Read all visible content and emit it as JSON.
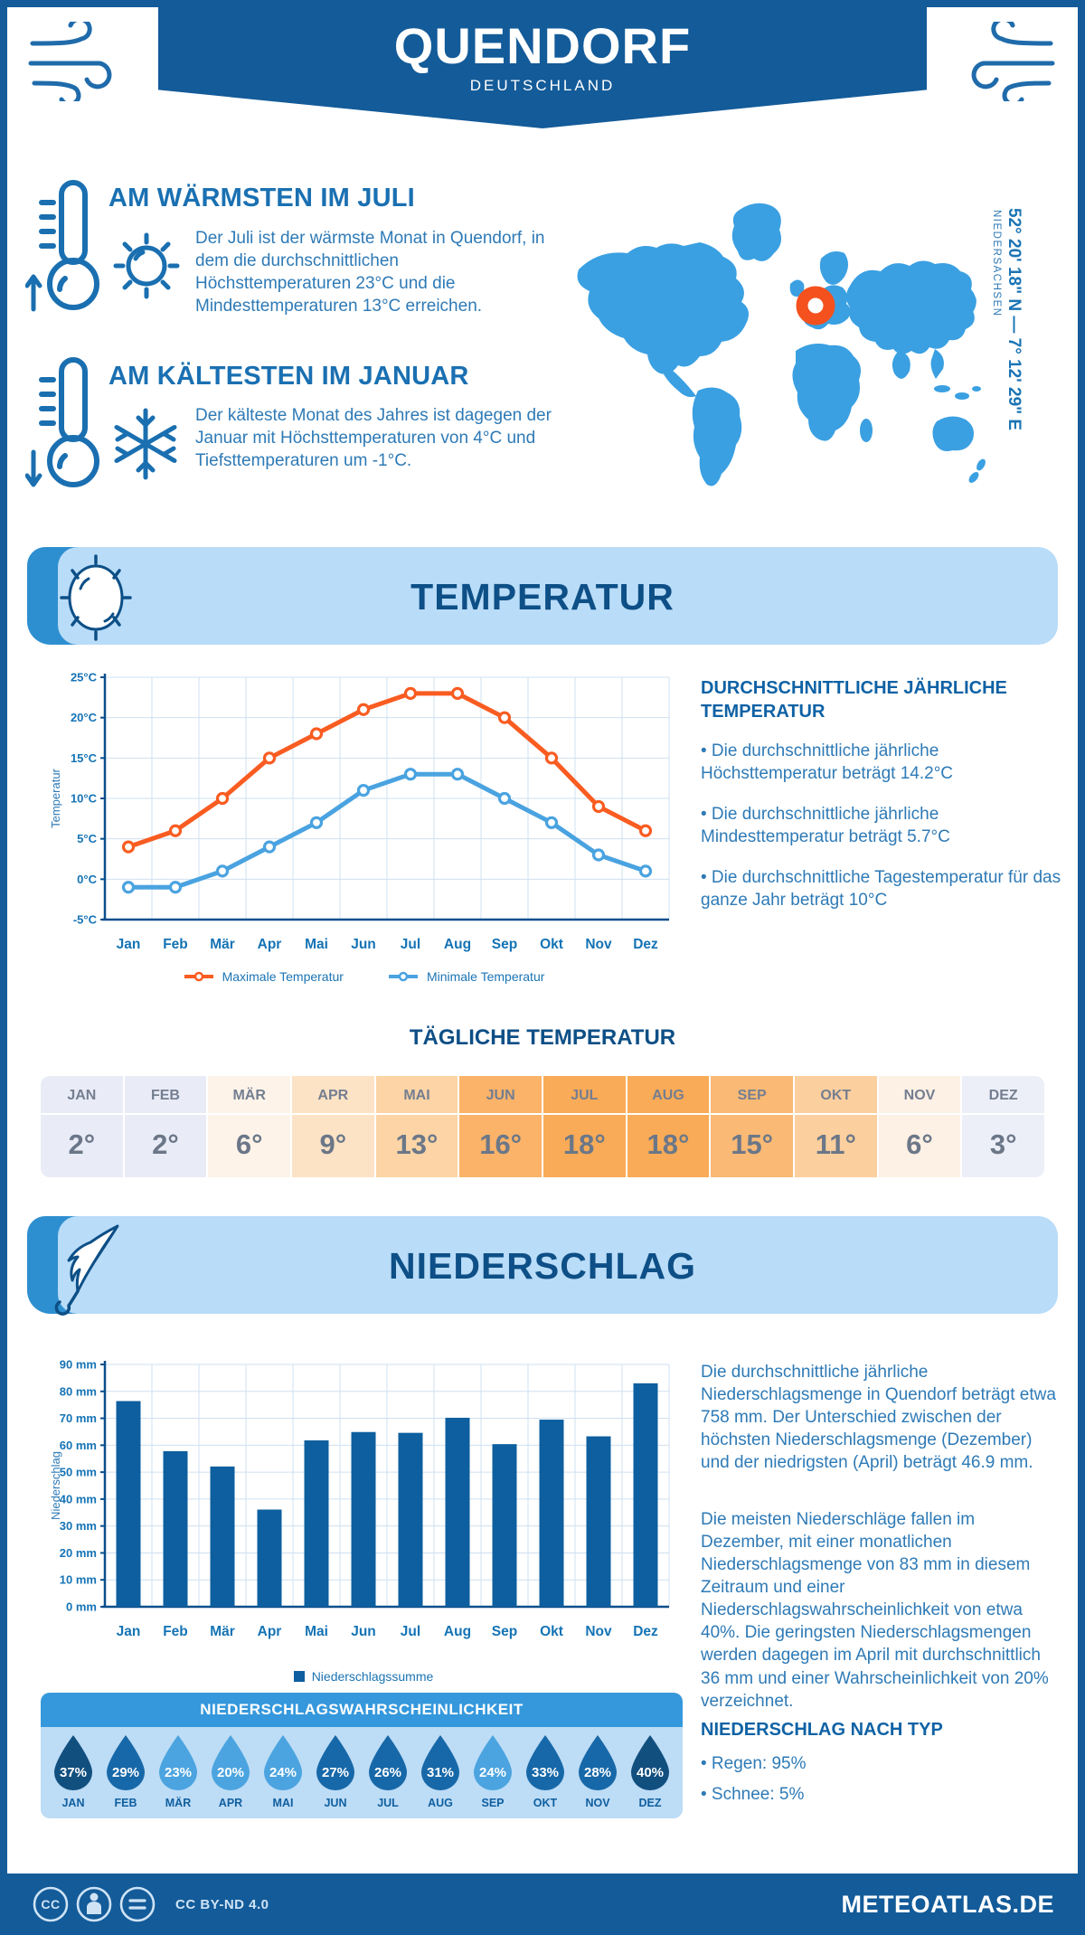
{
  "header": {
    "title": "QUENDORF",
    "subtitle": "DEUTSCHLAND"
  },
  "warmest": {
    "title": "AM WÄRMSTEN IM JULI",
    "text": "Der Juli ist der wärmste Monat in Quendorf, in dem die durchschnittlichen Höchsttemperaturen 23°C und die Mindesttemperaturen 13°C erreichen."
  },
  "coldest": {
    "title": "AM KÄLTESTEN IM JANUAR",
    "text": "Der kälteste Monat des Jahres ist dagegen der Januar mit Höchsttemperaturen von 4°C und Tiefsttemperaturen um -1°C."
  },
  "map": {
    "coordinates": "52° 20' 18\" N — 7° 12' 29\" E",
    "region": "NIEDERSACHSEN",
    "marker_color": "#f4511e",
    "land_color": "#3aa0e2"
  },
  "temperature_section": {
    "banner": "TEMPERATUR",
    "annual_title": "DURCHSCHNITTLICHE JÄHRLICHE TEMPERATUR",
    "bullets": [
      "• Die durchschnittliche jährliche Höchsttemperatur beträgt 14.2°C",
      "• Die durchschnittliche jährliche Mindesttemperatur beträgt 5.7°C",
      "• Die durchschnittliche Tagestemperatur für das ganze Jahr beträgt 10°C"
    ],
    "daily_title": "TÄGLICHE TEMPERATUR",
    "monthly": [
      {
        "month": "JAN",
        "value": "2°",
        "bg": "#e9ecf7"
      },
      {
        "month": "FEB",
        "value": "2°",
        "bg": "#e9ecf7"
      },
      {
        "month": "MÄR",
        "value": "6°",
        "bg": "#fdf3e9"
      },
      {
        "month": "APR",
        "value": "9°",
        "bg": "#fde3c5"
      },
      {
        "month": "MAI",
        "value": "13°",
        "bg": "#fcd4a5"
      },
      {
        "month": "JUN",
        "value": "16°",
        "bg": "#fab369"
      },
      {
        "month": "JUL",
        "value": "18°",
        "bg": "#f9ab57"
      },
      {
        "month": "AUG",
        "value": "18°",
        "bg": "#f9ab57"
      },
      {
        "month": "SEP",
        "value": "15°",
        "bg": "#fab975"
      },
      {
        "month": "OKT",
        "value": "11°",
        "bg": "#fccf9e"
      },
      {
        "month": "NOV",
        "value": "6°",
        "bg": "#fdf0e4"
      },
      {
        "month": "DEZ",
        "value": "3°",
        "bg": "#eceff8"
      }
    ]
  },
  "precipitation_section": {
    "banner": "NIEDERSCHLAG",
    "paragraph1": "Die durchschnittliche jährliche Niederschlagsmenge in Quendorf beträgt etwa 758 mm. Der Unterschied zwischen der höchsten Niederschlagsmenge (Dezember) und der niedrigsten (April) beträgt 46.9 mm.",
    "paragraph2": "Die meisten Niederschläge fallen im Dezember, mit einer monatlichen Niederschlagsmenge von 83 mm in diesem Zeitraum und einer Niederschlagswahrscheinlichkeit von etwa 40%. Die geringsten Niederschlagsmengen werden dagegen im April mit durchschnittlich 36 mm und einer Wahrscheinlichkeit von 20% verzeichnet.",
    "type_title": "NIEDERSCHLAG NACH TYP",
    "type_bullets": [
      "• Regen: 95%",
      "• Schnee: 5%"
    ],
    "probability": {
      "title": "NIEDERSCHLAGSWAHRSCHEINLICHKEIT",
      "items": [
        {
          "month": "JAN",
          "value": "37%",
          "color": "#114f7f"
        },
        {
          "month": "FEB",
          "value": "29%",
          "color": "#1768a8"
        },
        {
          "month": "MÄR",
          "value": "23%",
          "color": "#4ba4df"
        },
        {
          "month": "APR",
          "value": "20%",
          "color": "#4ba4df"
        },
        {
          "month": "MAI",
          "value": "24%",
          "color": "#4ba4df"
        },
        {
          "month": "JUN",
          "value": "27%",
          "color": "#1768a8"
        },
        {
          "month": "JUL",
          "value": "26%",
          "color": "#1768a8"
        },
        {
          "month": "AUG",
          "value": "31%",
          "color": "#1768a8"
        },
        {
          "month": "SEP",
          "value": "24%",
          "color": "#4ba4df"
        },
        {
          "month": "OKT",
          "value": "33%",
          "color": "#1768a8"
        },
        {
          "month": "NOV",
          "value": "28%",
          "color": "#1768a8"
        },
        {
          "month": "DEZ",
          "value": "40%",
          "color": "#114f7f"
        }
      ]
    }
  },
  "chart_data": [
    {
      "type": "line",
      "title": "Temperatur",
      "categories": [
        "Jan",
        "Feb",
        "Mär",
        "Apr",
        "Mai",
        "Jun",
        "Jul",
        "Aug",
        "Sep",
        "Okt",
        "Nov",
        "Dez"
      ],
      "series": [
        {
          "name": "Maximale Temperatur",
          "color": "#f95c21",
          "values": [
            4,
            6,
            10,
            15,
            18,
            21,
            23,
            23,
            20,
            15,
            9,
            6
          ]
        },
        {
          "name": "Minimale Temperatur",
          "color": "#4aa3e0",
          "values": [
            -1,
            -1,
            1,
            4,
            7,
            11,
            13,
            13,
            10,
            7,
            3,
            1
          ]
        }
      ],
      "xlabel": "",
      "ylabel": "Temperatur",
      "ylim": [
        -5,
        25
      ],
      "ystep": 5,
      "ytick_suffix": "°C",
      "grid": true,
      "legend_position": "bottom"
    },
    {
      "type": "bar",
      "title": "Niederschlag",
      "categories": [
        "Jan",
        "Feb",
        "Mär",
        "Apr",
        "Mai",
        "Jun",
        "Jul",
        "Aug",
        "Sep",
        "Okt",
        "Nov",
        "Dez"
      ],
      "values": [
        76.4,
        57.8,
        52.1,
        36.1,
        61.8,
        64.9,
        64.6,
        70.2,
        60.4,
        69.5,
        63.3,
        83
      ],
      "name": "Niederschlagssumme",
      "color": "#0d5f9f",
      "xlabel": "",
      "ylabel": "Niederschlag",
      "ylim": [
        0,
        90
      ],
      "ystep": 10,
      "ytick_suffix": " mm",
      "grid": true,
      "legend_position": "bottom"
    }
  ],
  "footer": {
    "license": "CC BY-ND 4.0",
    "site": "METEOATLAS.DE"
  }
}
